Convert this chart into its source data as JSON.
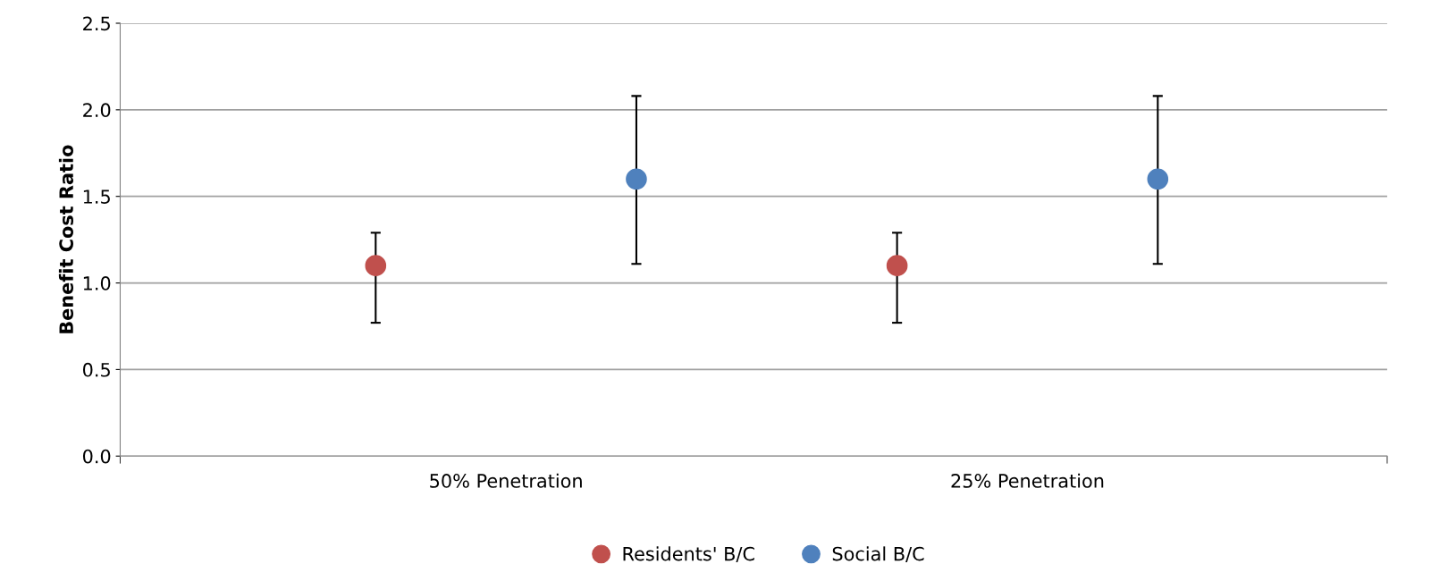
{
  "chart_data": {
    "type": "scatter",
    "ylabel": "Benefit Cost Ratio",
    "categories": [
      "50% Penetration",
      "25% Penetration"
    ],
    "series": [
      {
        "name": "Residents' B/C",
        "color": "#c0504d",
        "values": [
          1.1,
          1.1
        ],
        "errors": [
          [
            0.77,
            1.29
          ],
          [
            0.77,
            1.29
          ]
        ]
      },
      {
        "name": "Social B/C",
        "color": "#4f81bd",
        "values": [
          1.6,
          1.6
        ],
        "errors": [
          [
            1.11,
            2.08
          ],
          [
            1.11,
            2.08
          ]
        ]
      }
    ],
    "ylim": [
      0,
      2.5
    ],
    "yticks": [
      {
        "value": 0,
        "label": "0.0"
      },
      {
        "value": 0.5,
        "label": "0.5"
      },
      {
        "value": 1,
        "label": "1.0"
      },
      {
        "value": 1.5,
        "label": "1.5"
      },
      {
        "value": 2,
        "label": "2.0"
      },
      {
        "value": 2.5,
        "label": "2.5"
      }
    ],
    "grid": "y",
    "legend": "bottom",
    "marker": "circle"
  }
}
